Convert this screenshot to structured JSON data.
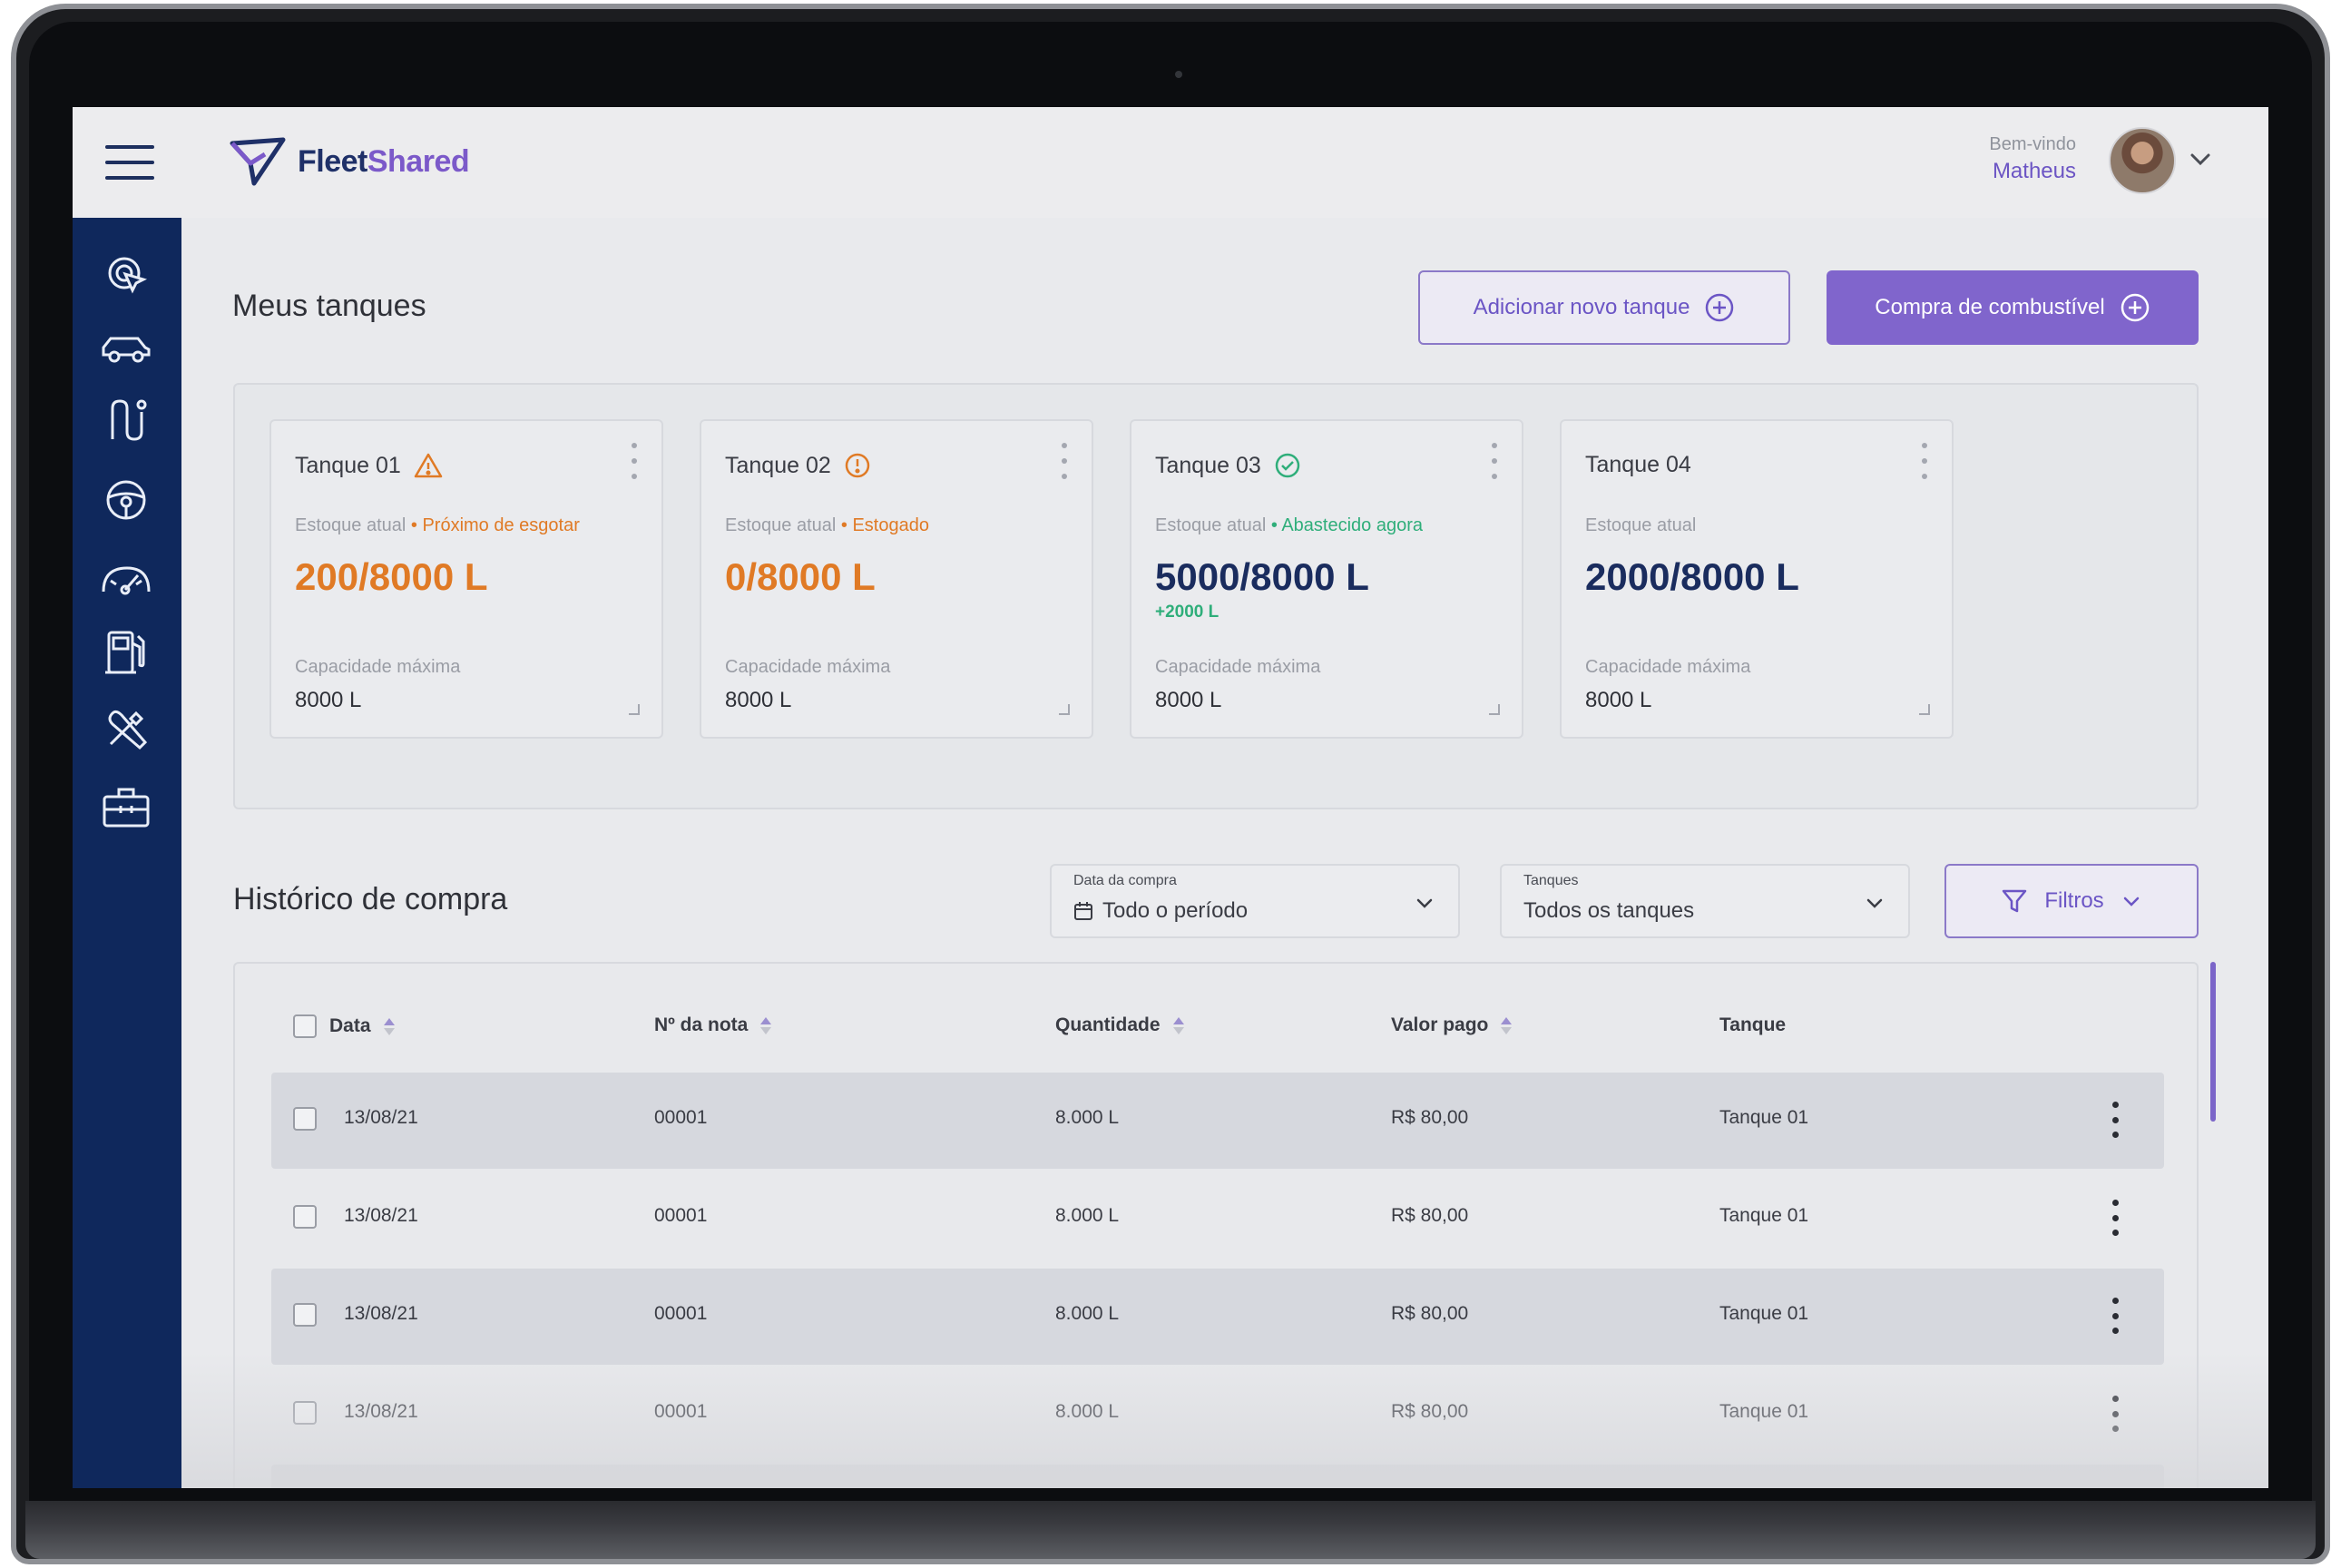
{
  "header": {
    "logo_part1": "Fleet",
    "logo_part2": "Shared",
    "welcome_label": "Bem-vindo",
    "user_name": "Matheus"
  },
  "sidebar": {
    "items": [
      "location-pointer-icon",
      "car-icon",
      "route-icon",
      "steering-wheel-icon",
      "speedometer-icon",
      "fuel-pump-icon",
      "tools-icon",
      "toolbox-icon"
    ]
  },
  "tanks_section": {
    "title": "Meus tanques",
    "add_button": "Adicionar novo tanque",
    "purchase_button": "Compra de combustível"
  },
  "tanks": [
    {
      "name": "Tanque 01",
      "status_icon": "warning-icon",
      "stock_label": "Estoque atual",
      "status_text": "• Próximo de esgotar",
      "status_color": "#e07a25",
      "value": "200/8000 L",
      "value_color": "#e07a25",
      "delta": "",
      "capacity_label": "Capacidade máxima",
      "capacity": "8000 L"
    },
    {
      "name": "Tanque 02",
      "status_icon": "alert-circle-icon",
      "stock_label": "Estoque atual",
      "status_text": "• Estogado",
      "status_color": "#e07a25",
      "value": "0/8000 L",
      "value_color": "#e07a25",
      "delta": "",
      "capacity_label": "Capacidade máxima",
      "capacity": "8000 L"
    },
    {
      "name": "Tanque 03",
      "status_icon": "check-circle-icon",
      "stock_label": "Estoque atual",
      "status_text": "• Abastecido agora",
      "status_color": "#2fae7a",
      "value": "5000/8000 L",
      "value_color": "#1a2c5e",
      "delta": "+2000 L",
      "capacity_label": "Capacidade máxima",
      "capacity": "8000 L"
    },
    {
      "name": "Tanque 04",
      "status_icon": "",
      "stock_label": "Estoque atual",
      "status_text": "",
      "status_color": "#2fae7a",
      "value": "2000/8000 L",
      "value_color": "#1a2c5e",
      "delta": "",
      "capacity_label": "Capacidade máxima",
      "capacity": "8000 L"
    }
  ],
  "history": {
    "title": "Histórico de compra",
    "date_filter": {
      "label": "Data da compra",
      "value": "Todo o período"
    },
    "tank_filter": {
      "label": "Tanques",
      "value": "Todos os tanques"
    },
    "filter_button": "Filtros",
    "columns": [
      "Data",
      "Nº da nota",
      "Quantidade",
      "Valor pago",
      "Tanque"
    ],
    "rows": [
      [
        "13/08/21",
        "00001",
        "8.000 L",
        "R$ 80,00",
        "Tanque 01"
      ],
      [
        "13/08/21",
        "00001",
        "8.000 L",
        "R$ 80,00",
        "Tanque 01"
      ],
      [
        "13/08/21",
        "00001",
        "8.000 L",
        "R$ 80,00",
        "Tanque 01"
      ],
      [
        "13/08/21",
        "00001",
        "8.000 L",
        "R$ 80,00",
        "Tanque 01"
      ]
    ]
  },
  "colors": {
    "sidebar": "#0f285c",
    "accent": "#8065cc",
    "warning": "#e07a25",
    "success": "#2fae7a",
    "value_dark": "#1a2c5e"
  }
}
